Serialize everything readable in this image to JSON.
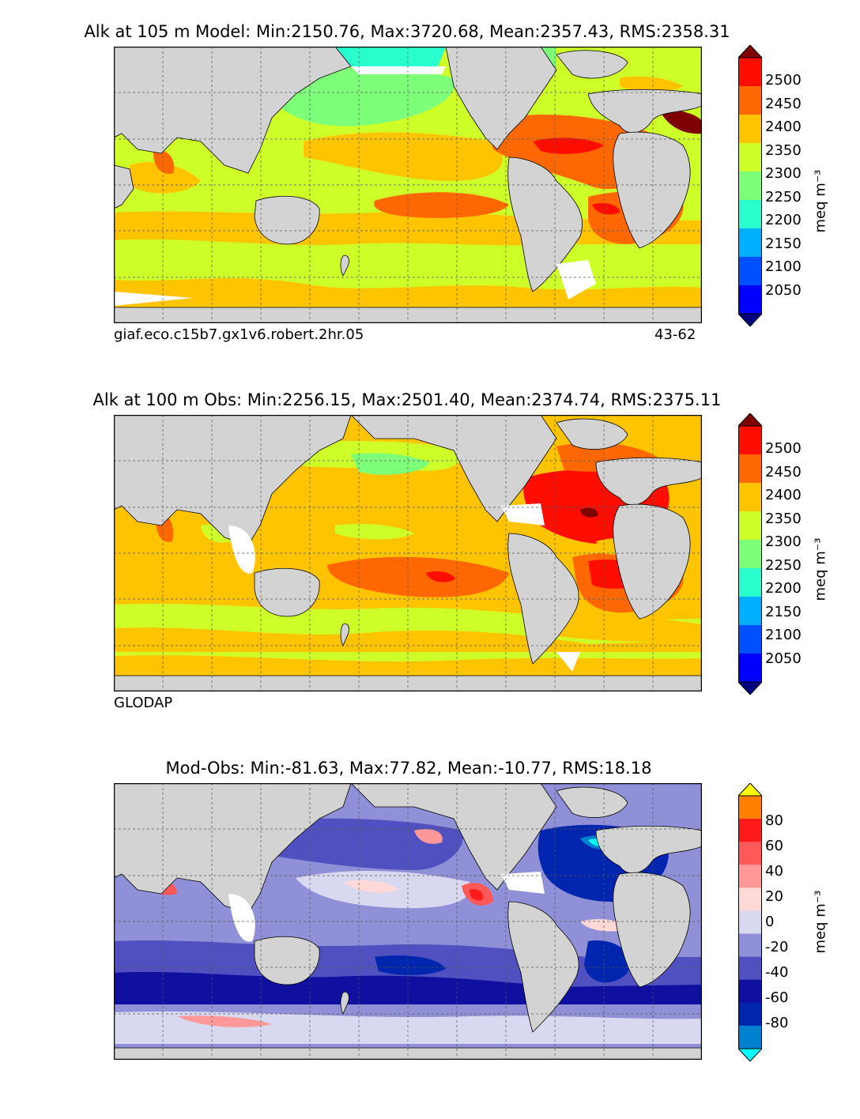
{
  "colormaps": {
    "alk": [
      "#00007f",
      "#0000ff",
      "#0050ff",
      "#00b0ff",
      "#29ffce",
      "#7dff7a",
      "#ceff29",
      "#ffc400",
      "#ff6800",
      "#ff0d00",
      "#7f0000"
    ],
    "diff": [
      "#00ffff",
      "#0080d0",
      "#0026b0",
      "#1010a0",
      "#5050c0",
      "#9090d8",
      "#d8d8f0",
      "#ffd8d8",
      "#ff9898",
      "#ff5858",
      "#ff1a1a",
      "#ff8000",
      "#ffff00"
    ]
  },
  "colors": {
    "land": "#d3d3d3",
    "no_data": "#ffffff",
    "frame": "#000000",
    "grid": "#555555"
  },
  "panels": [
    {
      "title": "Alk at 105 m Model: Min:2150.76, Max:3720.68, Mean:2357.43, RMS:2358.31",
      "note_left": "giaf.eco.c15b7.gx1v6.robert.2hr.05",
      "note_right": "43-62",
      "colorbar": {
        "units": "meq m⁻³",
        "ticks": [
          "2500",
          "2450",
          "2400",
          "2350",
          "2300",
          "2250",
          "2200",
          "2150",
          "2100",
          "2050"
        ]
      }
    },
    {
      "title": "Alk at 100 m Obs: Min:2256.15, Max:2501.40, Mean:2374.74, RMS:2375.11",
      "note_left": "GLODAP",
      "note_right": "",
      "colorbar": {
        "units": "meq m⁻³",
        "ticks": [
          "2500",
          "2450",
          "2400",
          "2350",
          "2300",
          "2250",
          "2200",
          "2150",
          "2100",
          "2050"
        ]
      }
    },
    {
      "title": "Mod-Obs: Min:-81.63, Max:77.82, Mean:-10.77, RMS:18.18",
      "note_left": "",
      "note_right": "",
      "colorbar": {
        "units": "meq m⁻³",
        "ticks": [
          "80",
          "60",
          "40",
          "20",
          "0",
          "-20",
          "-40",
          "-60",
          "-80"
        ]
      }
    }
  ],
  "chart_data": [
    {
      "type": "heatmap",
      "title": "Alk at 105 m Model: Min:2150.76, Max:3720.68, Mean:2357.43, RMS:2358.31",
      "variable": "Alk",
      "depth": "105 m",
      "source": "Model",
      "stats": {
        "min": 2150.76,
        "max": 3720.68,
        "mean": 2357.43,
        "rms": 2358.31
      },
      "case": "giaf.eco.c15b7.gx1v6.robert.2hr.05",
      "years": "43-62",
      "colorbar": {
        "units": "meq m⁻³",
        "levels": [
          2000,
          2050,
          2100,
          2150,
          2200,
          2250,
          2300,
          2350,
          2400,
          2450,
          2500,
          2550
        ],
        "extend": "both"
      }
    },
    {
      "type": "heatmap",
      "title": "Alk at 100 m Obs: Min:2256.15, Max:2501.40, Mean:2374.74, RMS:2375.11",
      "variable": "Alk",
      "depth": "100 m",
      "source": "Obs",
      "stats": {
        "min": 2256.15,
        "max": 2501.4,
        "mean": 2374.74,
        "rms": 2375.11
      },
      "dataset": "GLODAP",
      "colorbar": {
        "units": "meq m⁻³",
        "levels": [
          2000,
          2050,
          2100,
          2150,
          2200,
          2250,
          2300,
          2350,
          2400,
          2450,
          2500,
          2550
        ],
        "extend": "both"
      }
    },
    {
      "type": "heatmap",
      "title": "Mod-Obs: Min:-81.63, Max:77.82, Mean:-10.77, RMS:18.18",
      "variable": "Mod-Obs",
      "stats": {
        "min": -81.63,
        "max": 77.82,
        "mean": -10.77,
        "rms": 18.18
      },
      "colorbar": {
        "units": "meq m⁻³",
        "levels": [
          -80,
          -70,
          -60,
          -50,
          -40,
          -30,
          -20,
          -10,
          0,
          10,
          20,
          30,
          40,
          50,
          60,
          70,
          80
        ],
        "extend": "both"
      }
    }
  ]
}
